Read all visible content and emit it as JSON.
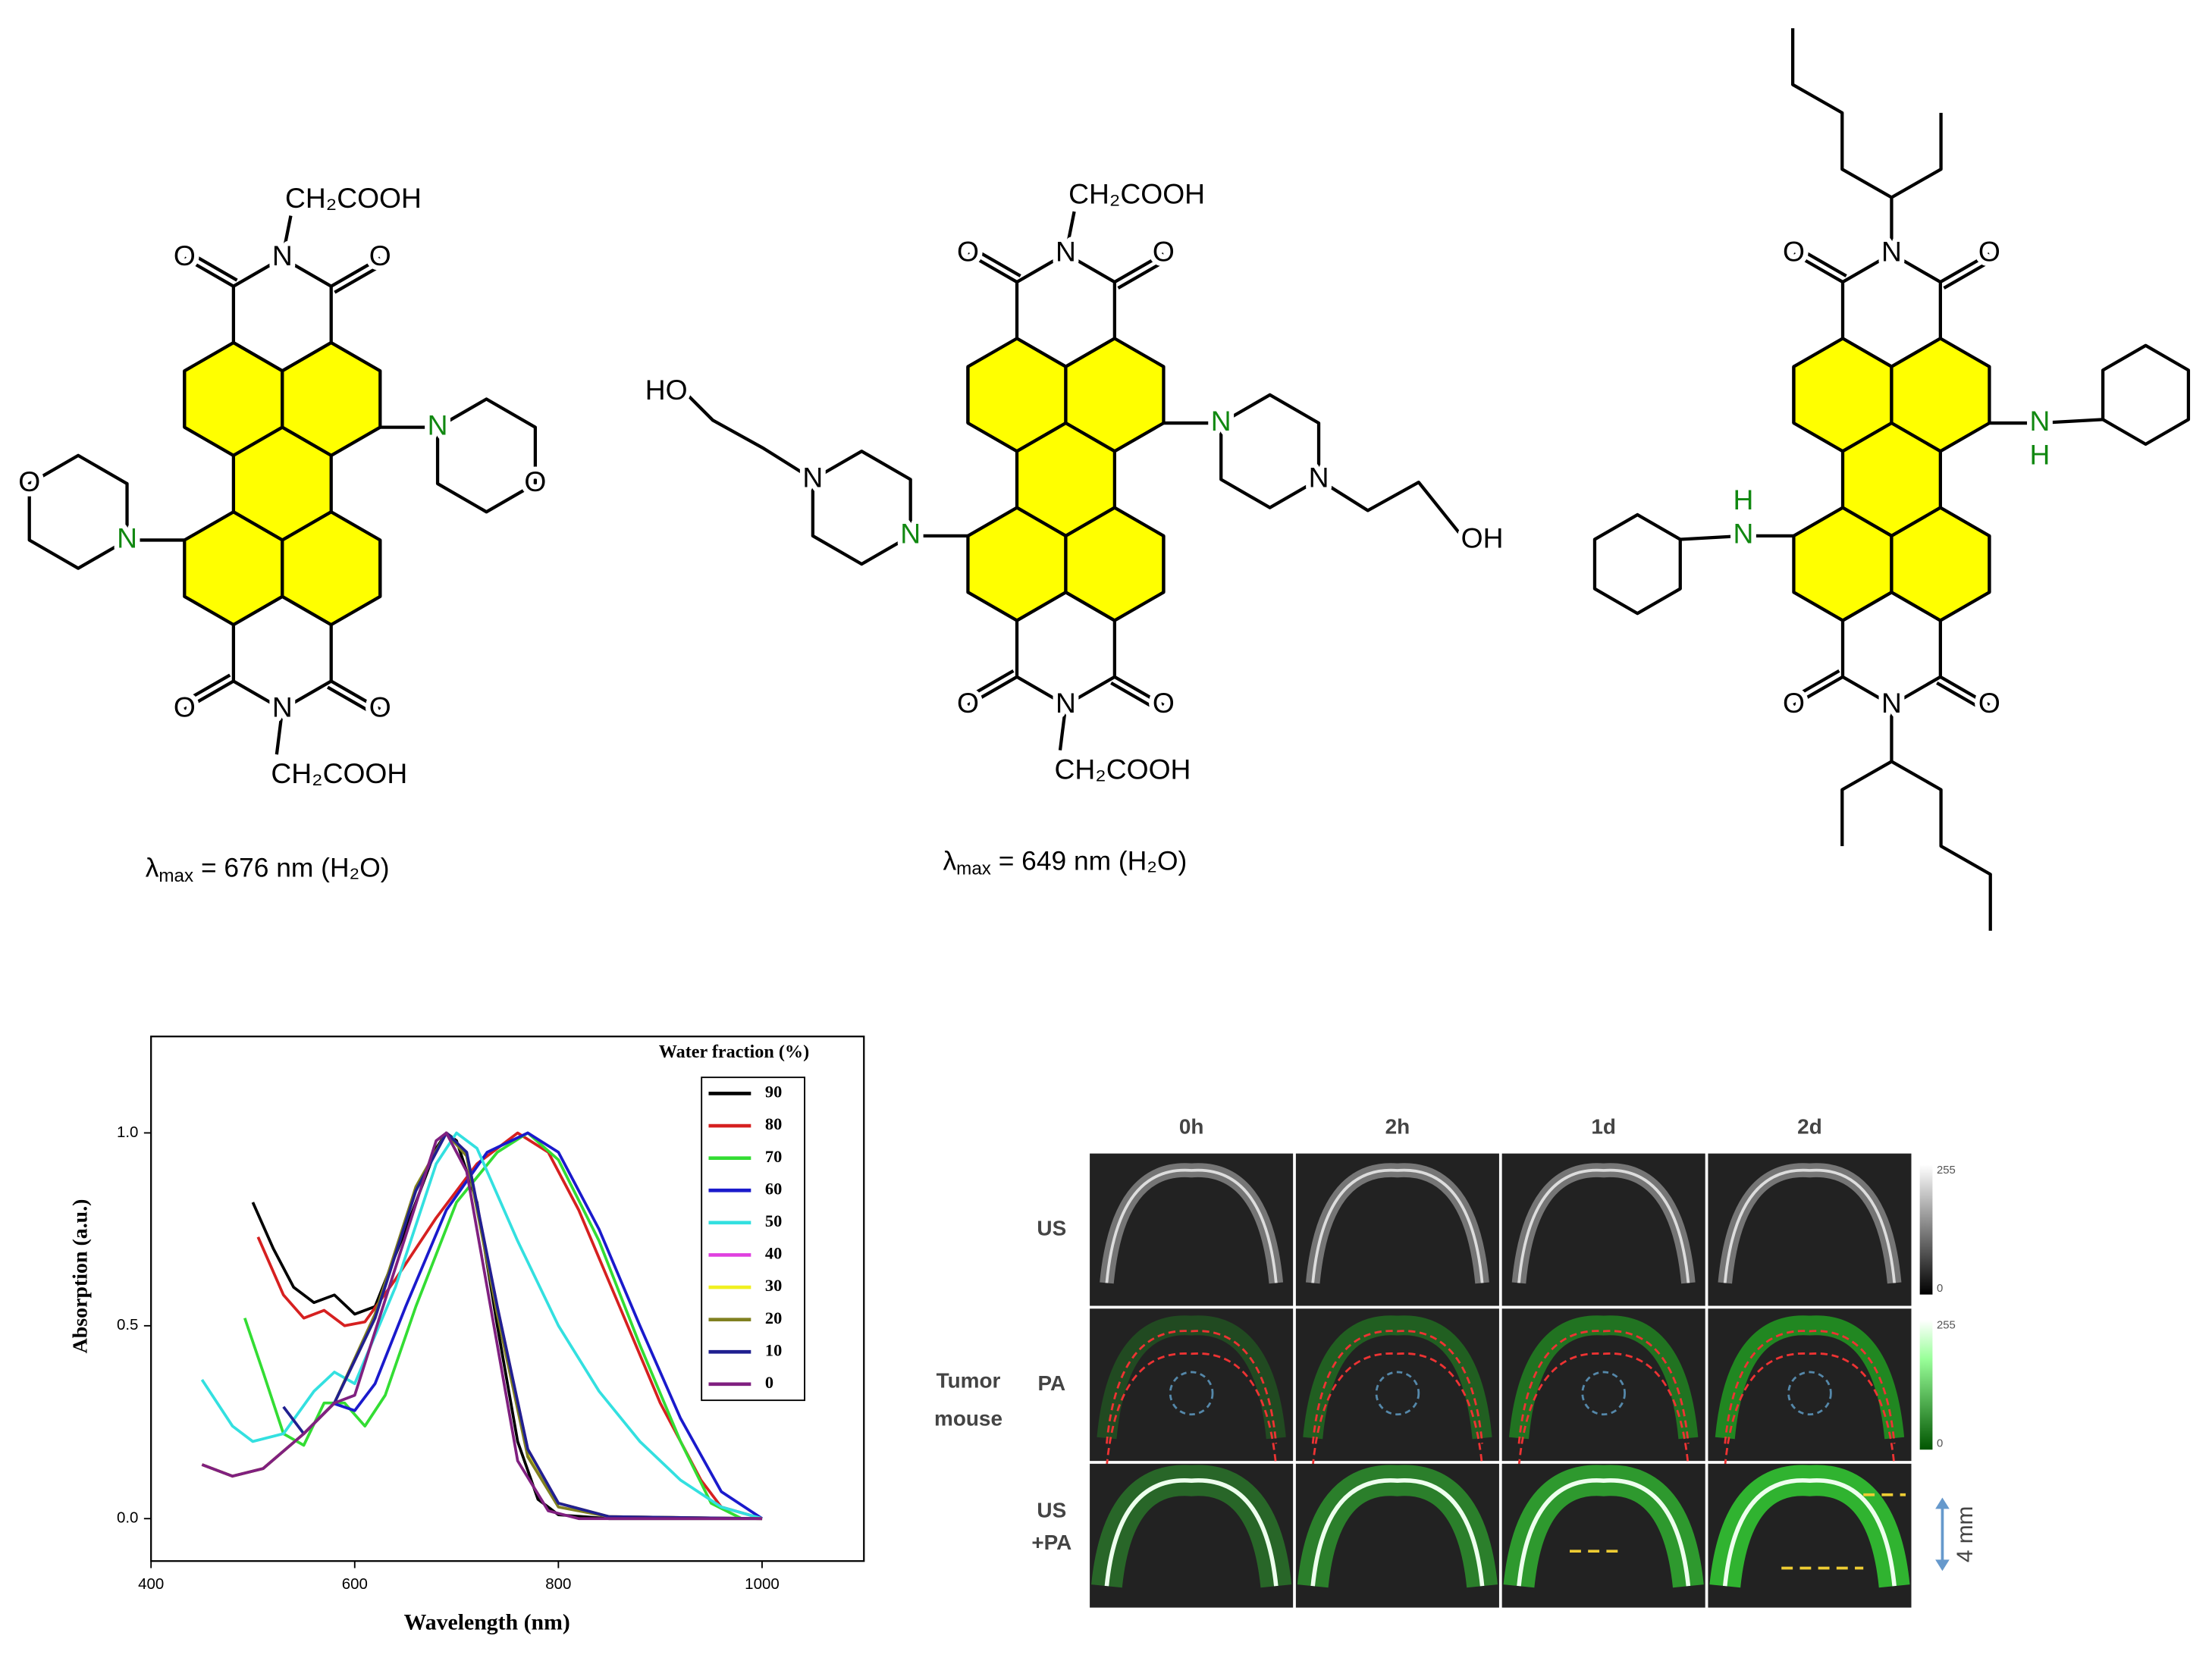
{
  "molecules": [
    {
      "atoms": [
        "CH₂COOH",
        "O",
        "N",
        "O",
        "O",
        "N",
        "O",
        "CH₂COOH",
        "N",
        "O",
        "N",
        "O"
      ],
      "caption": {
        "symbol": "λ",
        "subscript": "max",
        "text": " = 676 nm (H₂O)"
      }
    },
    {
      "atoms": [
        "CH₂COOH",
        "O",
        "N",
        "O",
        "O",
        "N",
        "O",
        "CH₂COOH",
        "N",
        "N",
        "OH",
        "N",
        "N",
        "HO"
      ],
      "caption": {
        "symbol": "λ",
        "subscript": "max",
        "text": " = 649 nm (H₂O)"
      }
    },
    {
      "atoms": [
        "O",
        "N",
        "O",
        "O",
        "N",
        "O",
        "N",
        "H",
        "H",
        "N"
      ]
    }
  ],
  "chart_data": {
    "type": "line",
    "xlabel": "Wavelength (nm)",
    "ylabel": "Absorption (a.u.)",
    "legend_title": "Water fraction (%)",
    "xlim": [
      400,
      1100
    ],
    "ylim": [
      -0.11,
      1.25
    ],
    "xticks": [
      400,
      600,
      800,
      1000
    ],
    "yticks": [
      {
        "value": 0,
        "label": "0.0"
      },
      0.5,
      {
        "value": 1,
        "label": "1.0"
      }
    ],
    "series": [
      {
        "name": "90",
        "color": "#000000",
        "x": [
          500,
          520,
          540,
          560,
          580,
          600,
          620,
          650,
          680,
          690,
          700,
          720,
          740,
          760,
          780,
          800,
          850,
          1000
        ],
        "values": [
          0.82,
          0.7,
          0.6,
          0.56,
          0.58,
          0.53,
          0.55,
          0.75,
          0.96,
          1.0,
          0.98,
          0.82,
          0.5,
          0.2,
          0.05,
          0.01,
          0,
          0
        ]
      },
      {
        "name": "80",
        "color": "#d62020",
        "x": [
          505,
          530,
          550,
          570,
          590,
          610,
          640,
          680,
          720,
          760,
          790,
          820,
          860,
          900,
          940,
          960,
          1000
        ],
        "values": [
          0.73,
          0.58,
          0.52,
          0.54,
          0.5,
          0.51,
          0.62,
          0.78,
          0.92,
          1.0,
          0.95,
          0.8,
          0.55,
          0.3,
          0.1,
          0.03,
          0
        ]
      },
      {
        "name": "70",
        "color": "#33dd33",
        "x": [
          492,
          510,
          530,
          550,
          570,
          590,
          610,
          630,
          660,
          700,
          740,
          770,
          800,
          840,
          880,
          920,
          950,
          980
        ],
        "values": [
          0.52,
          0.38,
          0.22,
          0.19,
          0.3,
          0.3,
          0.24,
          0.32,
          0.55,
          0.82,
          0.95,
          1.0,
          0.93,
          0.72,
          0.45,
          0.2,
          0.04,
          0
        ]
      },
      {
        "name": "60",
        "color": "#1a1acc",
        "x": [
          578,
          600,
          620,
          650,
          690,
          730,
          770,
          800,
          840,
          880,
          920,
          960,
          1000
        ],
        "values": [
          0.3,
          0.28,
          0.35,
          0.55,
          0.8,
          0.95,
          1.0,
          0.95,
          0.75,
          0.5,
          0.26,
          0.07,
          0
        ]
      },
      {
        "name": "50",
        "color": "#33e0e0",
        "x": [
          450,
          480,
          500,
          530,
          560,
          580,
          600,
          640,
          680,
          700,
          720,
          760,
          800,
          840,
          880,
          920,
          960,
          1000
        ],
        "values": [
          0.36,
          0.24,
          0.2,
          0.22,
          0.33,
          0.38,
          0.35,
          0.6,
          0.92,
          1.0,
          0.96,
          0.72,
          0.5,
          0.33,
          0.2,
          0.1,
          0.03,
          0
        ]
      },
      {
        "name": "40",
        "color": "#e040e0",
        "x": [
          450,
          480,
          510,
          550,
          580,
          620,
          660,
          690,
          710,
          740,
          770,
          800,
          850,
          1000
        ],
        "values": [
          0.14,
          0.11,
          0.13,
          0.22,
          0.3,
          0.52,
          0.85,
          1.0,
          0.95,
          0.55,
          0.18,
          0.04,
          0.005,
          0
        ]
      },
      {
        "name": "30",
        "color": "#f0f020",
        "x": [
          450,
          480,
          510,
          550,
          580,
          620,
          660,
          690,
          710,
          740,
          770,
          800,
          850,
          1000
        ],
        "values": [
          0.14,
          0.11,
          0.13,
          0.22,
          0.3,
          0.52,
          0.86,
          1.0,
          0.94,
          0.54,
          0.17,
          0.04,
          0.005,
          0
        ]
      },
      {
        "name": "20",
        "color": "#808020",
        "x": [
          450,
          480,
          510,
          550,
          580,
          620,
          660,
          690,
          710,
          740,
          770,
          800,
          850,
          1000
        ],
        "values": [
          0.14,
          0.11,
          0.13,
          0.22,
          0.3,
          0.53,
          0.86,
          1.0,
          0.94,
          0.53,
          0.16,
          0.03,
          0.005,
          0
        ]
      },
      {
        "name": "10",
        "color": "#202090",
        "x": [
          530,
          550,
          580,
          620,
          660,
          690,
          710,
          740,
          770,
          800,
          850,
          1000
        ],
        "values": [
          0.29,
          0.22,
          0.3,
          0.52,
          0.85,
          1.0,
          0.95,
          0.55,
          0.18,
          0.04,
          0.005,
          0
        ]
      },
      {
        "name": "0",
        "color": "#802080",
        "x": [
          450,
          480,
          510,
          550,
          580,
          600,
          640,
          680,
          690,
          710,
          740,
          760,
          790,
          820,
          1000
        ],
        "values": [
          0.14,
          0.11,
          0.13,
          0.22,
          0.3,
          0.32,
          0.65,
          0.98,
          1.0,
          0.9,
          0.45,
          0.15,
          0.02,
          0,
          0
        ]
      }
    ]
  },
  "imaging": {
    "columns": [
      "0h",
      "2h",
      "1d",
      "2d"
    ],
    "row_labels": [
      "US",
      "PA",
      "US",
      "+PA"
    ],
    "group_label": [
      "Tumor",
      "mouse"
    ],
    "colorbars": [
      {
        "max": 255,
        "min": 0
      },
      {
        "max": 255,
        "min": 0
      }
    ],
    "scale_bar": "4 mm"
  }
}
